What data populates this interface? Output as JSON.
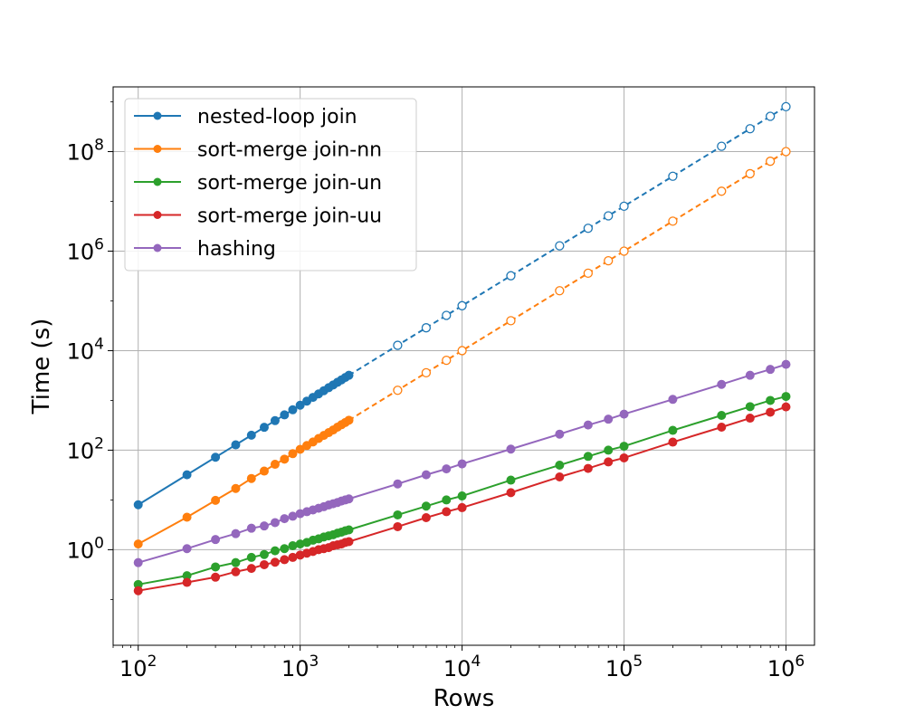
{
  "chart_data": {
    "type": "line",
    "xlabel": "Rows",
    "ylabel": "Time (s)",
    "xscale": "log",
    "yscale": "log",
    "xlim": [
      70,
      1500000
    ],
    "ylim": [
      0.012,
      2000000000
    ],
    "grid": true,
    "legend_position": "top-left",
    "x_ticks": [
      {
        "value": 100,
        "base": "10",
        "exp": "2"
      },
      {
        "value": 1000,
        "base": "10",
        "exp": "3"
      },
      {
        "value": 10000,
        "base": "10",
        "exp": "4"
      },
      {
        "value": 100000,
        "base": "10",
        "exp": "5"
      },
      {
        "value": 1000000,
        "base": "10",
        "exp": "6"
      }
    ],
    "y_ticks": [
      {
        "value": 1,
        "base": "10",
        "exp": "0"
      },
      {
        "value": 100,
        "base": "10",
        "exp": "2"
      },
      {
        "value": 10000,
        "base": "10",
        "exp": "4"
      },
      {
        "value": 1000000,
        "base": "10",
        "exp": "6"
      },
      {
        "value": 100000000,
        "base": "10",
        "exp": "8"
      }
    ],
    "series": [
      {
        "name": "nested-loop join",
        "color": "#1f77b4",
        "measured": {
          "x": [
            100,
            200,
            300,
            400,
            500,
            600,
            700,
            800,
            900,
            1000,
            1100,
            1200,
            1300,
            1400,
            1500,
            1600,
            1700,
            1800,
            1900,
            2000
          ],
          "y": [
            8,
            32,
            72,
            128,
            200,
            288,
            392,
            512,
            648,
            800,
            968,
            1152,
            1352,
            1568,
            1800,
            2048,
            2312,
            2592,
            2888,
            3200
          ]
        },
        "extrapolated": {
          "x": [
            2000,
            4000,
            6000,
            8000,
            10000,
            20000,
            40000,
            60000,
            80000,
            100000,
            200000,
            400000,
            600000,
            800000,
            1000000
          ],
          "y": [
            3200,
            12800,
            28800,
            51200,
            80000,
            320000,
            1280000,
            2880000,
            5120000,
            8000000,
            32000000,
            128000000,
            288000000,
            512000000,
            800000000
          ]
        }
      },
      {
        "name": "sort-merge join-nn",
        "color": "#ff7f0e",
        "measured": {
          "x": [
            100,
            200,
            300,
            400,
            500,
            600,
            700,
            800,
            900,
            1000,
            1100,
            1200,
            1300,
            1400,
            1500,
            1600,
            1700,
            1800,
            1900,
            2000
          ],
          "y": [
            1.3,
            4.5,
            9.8,
            17,
            27,
            38,
            52,
            66,
            85,
            104,
            124,
            146,
            172,
            198,
            225,
            255,
            290,
            325,
            360,
            400
          ]
        },
        "extrapolated": {
          "x": [
            2000,
            4000,
            6000,
            8000,
            10000,
            20000,
            40000,
            60000,
            80000,
            100000,
            200000,
            400000,
            600000,
            800000,
            1000000
          ],
          "y": [
            400,
            1600,
            3600,
            6400,
            10000,
            40000,
            160000,
            360000,
            640000,
            1000000,
            4000000,
            16000000,
            36000000,
            64000000,
            100000000
          ]
        }
      },
      {
        "name": "sort-merge join-un",
        "color": "#2ca02c",
        "measured": {
          "x": [
            100,
            200,
            300,
            400,
            500,
            600,
            700,
            800,
            900,
            1000,
            1100,
            1200,
            1300,
            1400,
            1500,
            1600,
            1700,
            1800,
            1900,
            2000,
            4000,
            6000,
            8000,
            10000,
            20000,
            40000,
            60000,
            80000,
            100000,
            200000,
            400000,
            600000,
            800000,
            1000000
          ],
          "y": [
            0.2,
            0.3,
            0.45,
            0.55,
            0.7,
            0.8,
            0.95,
            1.05,
            1.2,
            1.3,
            1.4,
            1.55,
            1.65,
            1.8,
            1.9,
            2.0,
            2.15,
            2.25,
            2.4,
            2.5,
            5,
            7.5,
            10,
            12,
            25,
            50,
            75,
            100,
            120,
            250,
            500,
            750,
            1000,
            1200
          ]
        }
      },
      {
        "name": "sort-merge join-uu",
        "color": "#d62728",
        "measured": {
          "x": [
            100,
            200,
            300,
            400,
            500,
            600,
            700,
            800,
            900,
            1000,
            1100,
            1200,
            1300,
            1400,
            1500,
            1600,
            1700,
            1800,
            1900,
            2000,
            4000,
            6000,
            8000,
            10000,
            20000,
            40000,
            60000,
            80000,
            100000,
            200000,
            400000,
            600000,
            800000,
            1000000
          ],
          "y": [
            0.15,
            0.22,
            0.28,
            0.36,
            0.42,
            0.5,
            0.56,
            0.63,
            0.7,
            0.78,
            0.85,
            0.92,
            1.0,
            1.05,
            1.1,
            1.2,
            1.25,
            1.3,
            1.4,
            1.45,
            2.9,
            4.4,
            5.8,
            7.0,
            14,
            29,
            43,
            58,
            70,
            145,
            290,
            440,
            580,
            740
          ]
        }
      },
      {
        "name": "hashing",
        "color": "#9467bd",
        "measured": {
          "x": [
            100,
            200,
            300,
            400,
            500,
            600,
            700,
            800,
            900,
            1000,
            1100,
            1200,
            1300,
            1400,
            1500,
            1600,
            1700,
            1800,
            1900,
            2000,
            4000,
            6000,
            8000,
            10000,
            20000,
            40000,
            60000,
            80000,
            100000,
            200000,
            400000,
            600000,
            800000,
            1000000
          ],
          "y": [
            0.55,
            1.05,
            1.6,
            2.1,
            2.7,
            3.0,
            3.5,
            4.2,
            4.7,
            5.3,
            5.8,
            6.3,
            6.8,
            7.3,
            7.9,
            8.4,
            8.9,
            9.5,
            10,
            10.5,
            21,
            32,
            42,
            53,
            105,
            210,
            320,
            420,
            530,
            1050,
            2100,
            3200,
            4200,
            5300
          ]
        }
      }
    ]
  }
}
